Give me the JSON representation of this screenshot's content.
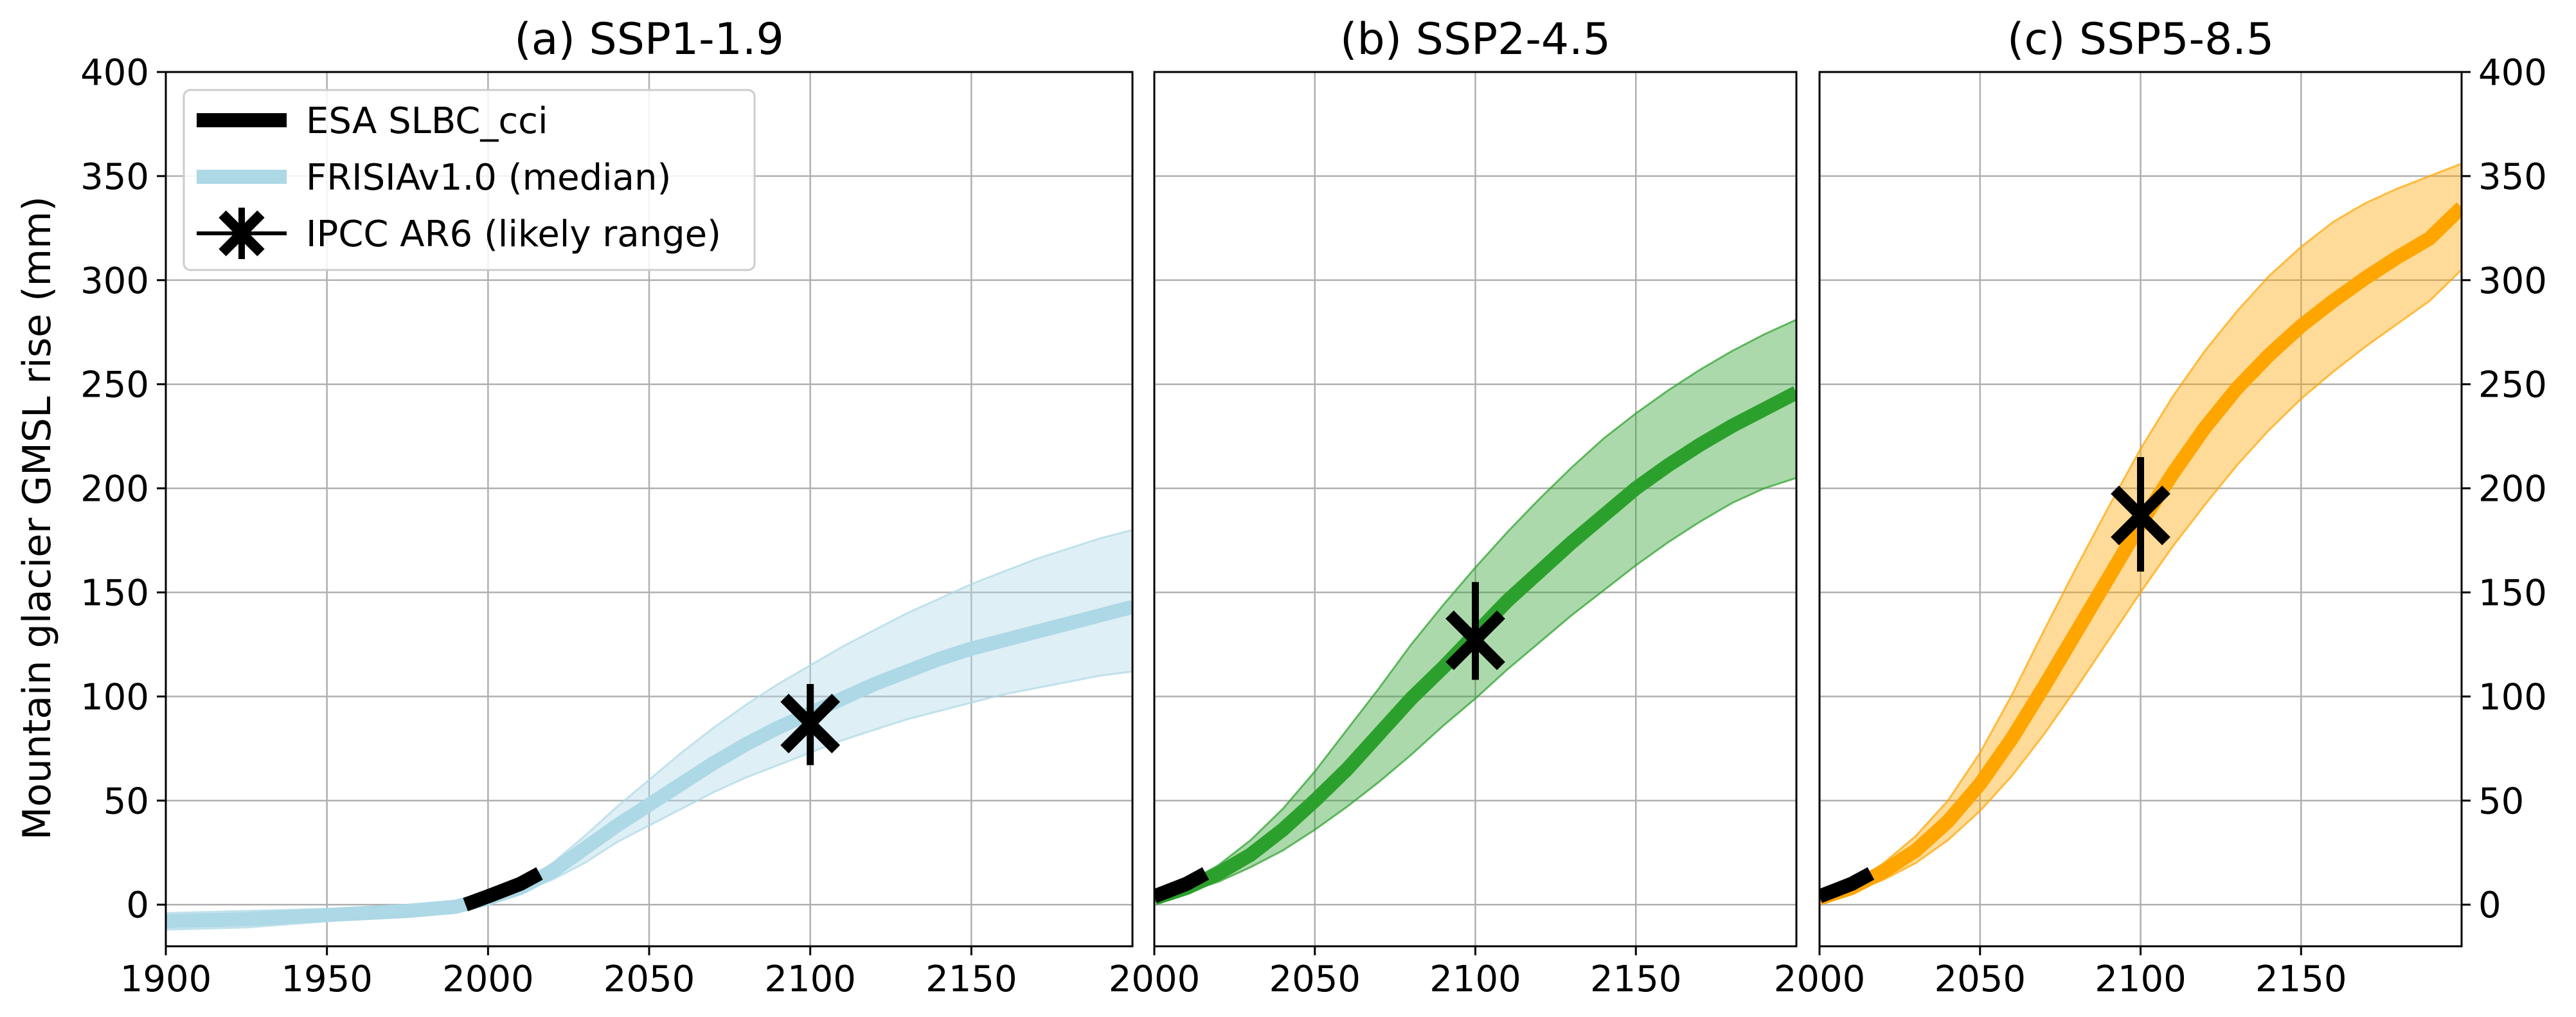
{
  "figure": {
    "ylabel": "Mountain glacier GMSL rise (mm)",
    "legend": {
      "position": "upper-left of panel (a)",
      "entries": [
        {
          "label": "ESA SLBC_cci",
          "style": "thick-black-line",
          "color": "#000000"
        },
        {
          "label": "FRISIAv1.0 (median)",
          "style": "thick-line",
          "color": "#add8e6"
        },
        {
          "label": "IPCC AR6 (likely range)",
          "style": "x-marker-with-errorbar",
          "color": "#000000"
        }
      ]
    }
  },
  "chart_data": [
    {
      "type": "line",
      "title": "(a) SSP1-1.9",
      "xlabel": "",
      "ylabel": "Mountain glacier GMSL rise (mm)",
      "xlim": [
        1900,
        2200
      ],
      "ylim": [
        -20,
        400
      ],
      "xticks": [
        1900,
        1950,
        2000,
        2050,
        2100,
        2150
      ],
      "xtick_labels": [
        "1900",
        "1950",
        "2000",
        "2050",
        "2100",
        "2150"
      ],
      "yticks": [
        0,
        50,
        100,
        150,
        200,
        250,
        300,
        350,
        400
      ],
      "ytick_labels": [
        "0",
        "50",
        "100",
        "150",
        "200",
        "250",
        "300",
        "350",
        "400"
      ],
      "yaxis_side": "left",
      "grid": true,
      "color": "#add8e6",
      "median": {
        "name": "FRISIAv1.0 (median)",
        "x": [
          1900,
          1925,
          1950,
          1975,
          1990,
          2000,
          2010,
          2020,
          2030,
          2040,
          2050,
          2060,
          2070,
          2080,
          2090,
          2100,
          2110,
          2120,
          2130,
          2140,
          2150,
          2160,
          2170,
          2180,
          2190,
          2200
        ],
        "y": [
          -8,
          -7,
          -5,
          -3,
          -1,
          3,
          8,
          16,
          27,
          38,
          48,
          58,
          68,
          77,
          85,
          92,
          99,
          106,
          112,
          118,
          123,
          127,
          131,
          135,
          139,
          143
        ]
      },
      "band": {
        "x": [
          1900,
          1925,
          1950,
          1975,
          1990,
          2000,
          2010,
          2020,
          2030,
          2040,
          2050,
          2060,
          2070,
          2080,
          2090,
          2100,
          2110,
          2120,
          2130,
          2140,
          2150,
          2160,
          2170,
          2180,
          2190,
          2200
        ],
        "lower": [
          -12,
          -11,
          -8,
          -5,
          -2,
          2,
          6,
          12,
          20,
          30,
          38,
          46,
          54,
          61,
          67,
          73,
          79,
          84,
          89,
          93,
          97,
          101,
          104,
          107,
          110,
          112
        ],
        "upper": [
          -4,
          -3,
          -2,
          -1,
          0,
          4,
          10,
          20,
          33,
          47,
          60,
          73,
          85,
          96,
          106,
          115,
          124,
          132,
          140,
          147,
          154,
          160,
          166,
          171,
          176,
          180
        ]
      },
      "observations": {
        "name": "ESA SLBC_cci",
        "x": [
          1993,
          2000,
          2005,
          2010,
          2016
        ],
        "y": [
          0,
          4,
          7,
          10,
          15
        ]
      },
      "ipcc": {
        "name": "IPCC AR6 (likely range)",
        "x": 2100,
        "y": 87,
        "low": 67,
        "high": 106
      }
    },
    {
      "type": "line",
      "title": "(b) SSP2-4.5",
      "xlabel": "",
      "ylabel": "",
      "xlim": [
        2000,
        2200
      ],
      "ylim": [
        -20,
        400
      ],
      "xticks": [
        2000,
        2050,
        2100,
        2150
      ],
      "xtick_labels": [
        "2000",
        "2050",
        "2100",
        "2150"
      ],
      "yticks": [
        0,
        50,
        100,
        150,
        200,
        250,
        300,
        350,
        400
      ],
      "ytick_labels": [],
      "yaxis_side": "none",
      "grid": true,
      "color": "#2ca02c",
      "median": {
        "name": "median",
        "x": [
          2000,
          2010,
          2020,
          2030,
          2040,
          2050,
          2060,
          2070,
          2080,
          2090,
          2100,
          2110,
          2120,
          2130,
          2140,
          2150,
          2160,
          2170,
          2180,
          2190,
          2200
        ],
        "y": [
          3,
          8,
          15,
          24,
          36,
          50,
          65,
          82,
          99,
          114,
          130,
          146,
          160,
          174,
          187,
          200,
          211,
          221,
          230,
          238,
          246
        ]
      },
      "band": {
        "x": [
          2000,
          2010,
          2020,
          2030,
          2040,
          2050,
          2060,
          2070,
          2080,
          2090,
          2100,
          2110,
          2120,
          2130,
          2140,
          2150,
          2160,
          2170,
          2180,
          2190,
          2200
        ],
        "lower": [
          2,
          6,
          11,
          18,
          26,
          36,
          47,
          59,
          72,
          86,
          99,
          113,
          126,
          139,
          151,
          163,
          174,
          184,
          193,
          200,
          205
        ],
        "upper": [
          4,
          10,
          19,
          31,
          46,
          64,
          84,
          104,
          125,
          144,
          162,
          179,
          195,
          210,
          224,
          236,
          247,
          257,
          266,
          274,
          281
        ]
      },
      "observations": {
        "name": "ESA SLBC_cci",
        "x": [
          2000,
          2005,
          2010,
          2016
        ],
        "y": [
          4,
          7,
          10,
          15
        ]
      },
      "ipcc": {
        "name": "IPCC AR6 (likely range)",
        "x": 2100,
        "y": 127,
        "low": 108,
        "high": 155
      }
    },
    {
      "type": "line",
      "title": "(c) SSP5-8.5",
      "xlabel": "",
      "ylabel": "",
      "xlim": [
        2000,
        2200
      ],
      "ylim": [
        -20,
        400
      ],
      "xticks": [
        2000,
        2050,
        2100,
        2150
      ],
      "xtick_labels": [
        "2000",
        "2050",
        "2100",
        "2150"
      ],
      "yticks": [
        0,
        50,
        100,
        150,
        200,
        250,
        300,
        350,
        400
      ],
      "ytick_labels": [
        "0",
        "50",
        "100",
        "150",
        "200",
        "250",
        "300",
        "350",
        "400"
      ],
      "yaxis_side": "right",
      "grid": true,
      "color": "#ffa500",
      "median": {
        "name": "median",
        "x": [
          2000,
          2010,
          2020,
          2030,
          2040,
          2050,
          2060,
          2070,
          2080,
          2090,
          2100,
          2110,
          2120,
          2130,
          2140,
          2150,
          2160,
          2170,
          2180,
          2190,
          2200
        ],
        "y": [
          3,
          8,
          16,
          26,
          40,
          58,
          80,
          105,
          131,
          157,
          183,
          207,
          229,
          248,
          264,
          278,
          290,
          301,
          311,
          320,
          335
        ]
      },
      "band": {
        "x": [
          2000,
          2010,
          2020,
          2030,
          2040,
          2050,
          2060,
          2070,
          2080,
          2090,
          2100,
          2110,
          2120,
          2130,
          2140,
          2150,
          2160,
          2170,
          2180,
          2190,
          2200
        ],
        "lower": [
          2,
          6,
          12,
          20,
          31,
          45,
          62,
          82,
          104,
          127,
          150,
          172,
          192,
          211,
          228,
          243,
          256,
          268,
          279,
          290,
          305
        ],
        "upper": [
          5,
          10,
          20,
          33,
          50,
          73,
          101,
          132,
          162,
          191,
          219,
          244,
          266,
          285,
          302,
          316,
          328,
          337,
          344,
          350,
          356
        ]
      },
      "observations": {
        "name": "ESA SLBC_cci",
        "x": [
          2000,
          2005,
          2010,
          2016
        ],
        "y": [
          4,
          7,
          10,
          15
        ]
      },
      "ipcc": {
        "name": "IPCC AR6 (likely range)",
        "x": 2100,
        "y": 187,
        "low": 160,
        "high": 215
      }
    }
  ]
}
